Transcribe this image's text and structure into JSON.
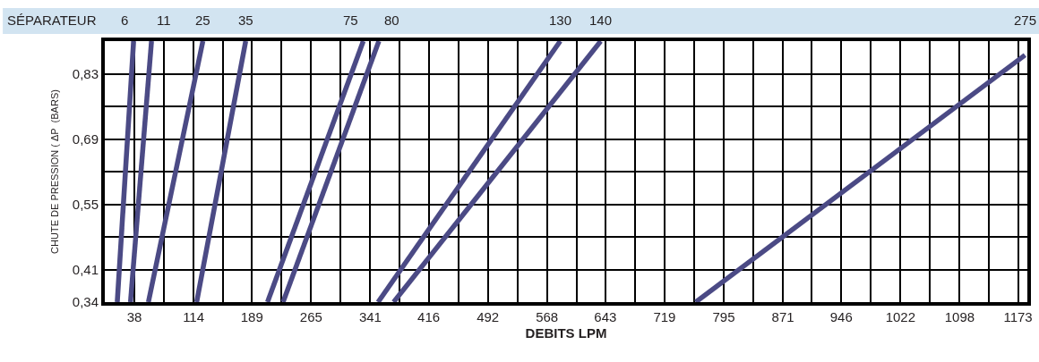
{
  "chart_data": {
    "type": "line",
    "annotations": [
      "SÉPARATEUR"
    ],
    "xlabel": "DEBITS LPM",
    "ylabel": "CHUTE DE PRESSION ( ΔP  (BARS)",
    "xlim": [
      0,
      1185
    ],
    "ylim": [
      0.34,
      0.9
    ],
    "xticks": [
      38,
      {
        "value": 76,
        "label": null
      },
      114,
      {
        "value": 152,
        "label": null
      },
      189,
      {
        "value": 227,
        "label": null
      },
      265,
      {
        "value": 303,
        "label": null
      },
      341,
      {
        "value": 379,
        "label": null
      },
      416,
      {
        "value": 454,
        "label": null
      },
      492,
      {
        "value": 530,
        "label": null
      },
      568,
      {
        "value": 606,
        "label": null
      },
      643,
      {
        "value": 681,
        "label": null
      },
      719,
      {
        "value": 757,
        "label": null
      },
      795,
      {
        "value": 833,
        "label": null
      },
      871,
      {
        "value": 908,
        "label": null
      },
      946,
      {
        "value": 984,
        "label": null
      },
      1022,
      {
        "value": 1060,
        "label": null
      },
      1098,
      {
        "value": 1135,
        "label": null
      },
      1173
    ],
    "yticks": [
      {
        "value": 0.34,
        "label": "0,34"
      },
      {
        "value": 0.41,
        "label": "0,41"
      },
      {
        "value": 0.48,
        "label": null
      },
      {
        "value": 0.55,
        "label": "0,55"
      },
      {
        "value": 0.62,
        "label": null
      },
      {
        "value": 0.69,
        "label": "0,69"
      },
      {
        "value": 0.76,
        "label": null
      },
      {
        "value": 0.83,
        "label": "0,83"
      }
    ],
    "grid": true,
    "marker": "none",
    "line_style": "solid",
    "series": [
      {
        "name": "6",
        "color": "#4b4a85",
        "x": [
          16,
          37
        ],
        "values": [
          0.34,
          0.9
        ]
      },
      {
        "name": "11",
        "color": "#4b4a85",
        "x": [
          33,
          60
        ],
        "values": [
          0.34,
          0.9
        ]
      },
      {
        "name": "25",
        "color": "#4b4a85",
        "x": [
          56,
          126
        ],
        "values": [
          0.34,
          0.9
        ]
      },
      {
        "name": "35",
        "color": "#4b4a85",
        "x": [
          118,
          181
        ],
        "values": [
          0.34,
          0.9
        ]
      },
      {
        "name": "75",
        "color": "#4b4a85",
        "x": [
          209,
          332
        ],
        "values": [
          0.34,
          0.9
        ]
      },
      {
        "name": "80",
        "color": "#4b4a85",
        "x": [
          229,
          352
        ],
        "values": [
          0.34,
          0.9
        ]
      },
      {
        "name": "130",
        "color": "#4b4a85",
        "x": [
          351,
          585
        ],
        "values": [
          0.34,
          0.9
        ]
      },
      {
        "name": "140",
        "color": "#4b4a85",
        "x": [
          371,
          637
        ],
        "values": [
          0.34,
          0.9
        ]
      },
      {
        "name": "275",
        "color": "#4b4a85",
        "x": [
          759,
          1182
        ],
        "values": [
          0.34,
          0.87
        ]
      }
    ]
  }
}
